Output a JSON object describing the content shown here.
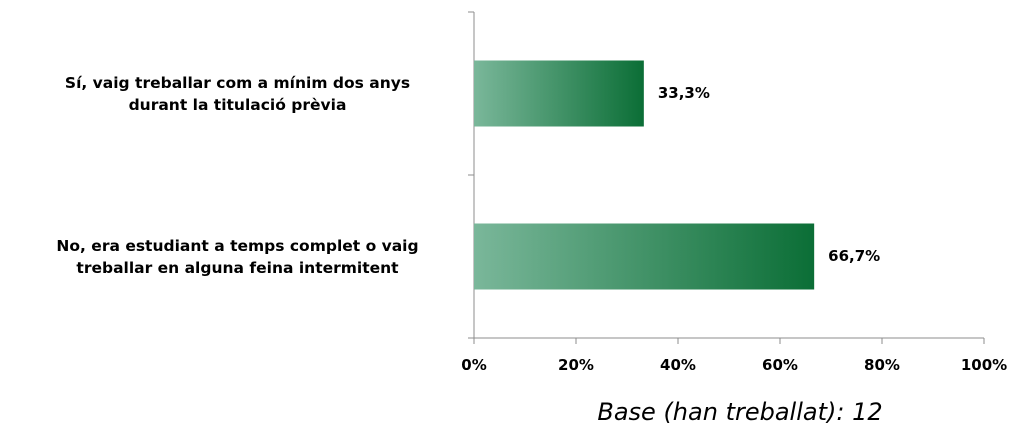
{
  "chart_data": {
    "type": "bar",
    "orientation": "horizontal",
    "categories": [
      "Sí, vaig treballar com a mínim dos anys\ndurant la titulació prèvia",
      "No, era estudiant a temps complet o vaig\ntreballar en alguna feina intermitent"
    ],
    "values": [
      33.3,
      66.7
    ],
    "data_labels": [
      "33,3%",
      "66,7%"
    ],
    "xlim": [
      0,
      100
    ],
    "x_ticks": [
      "0%",
      "20%",
      "40%",
      "60%",
      "80%",
      "100%"
    ],
    "grid": false,
    "bar_gradient": [
      "#7ab79a",
      "#0b6e36"
    ],
    "axis_color": "#8c8c8c"
  },
  "footnote": "Base (han treballat): 12"
}
